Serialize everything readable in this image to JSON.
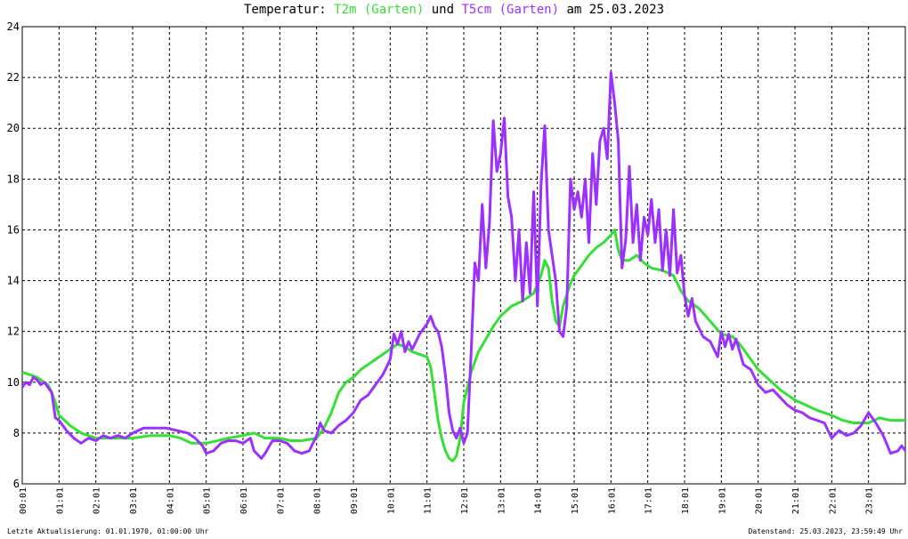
{
  "title": {
    "prefix": "Temperatur: ",
    "series1": "T2m (Garten)",
    "middle": " und ",
    "series2": "T5cm (Garten)",
    "suffix": " am 25.03.2023"
  },
  "footer": {
    "left": "Letzte Aktualisierung: 01.01.1970, 01:00:00 Uhr",
    "right": "Datenstand: 25.03.2023, 23:59:49 Uhr"
  },
  "chart_data": {
    "type": "line",
    "title": "Temperatur: T2m (Garten) und T5cm (Garten) am 25.03.2023",
    "xlabel": "",
    "ylabel": "",
    "xlim": [
      0,
      24
    ],
    "ylim": [
      6,
      24
    ],
    "grid": true,
    "y_ticks": [
      "6",
      "8",
      "10",
      "12",
      "14",
      "16",
      "18",
      "20",
      "22",
      "24"
    ],
    "x_ticks": [
      "00:01",
      "01:01",
      "02:01",
      "03:01",
      "04:01",
      "05:01",
      "06:01",
      "07:01",
      "08:01",
      "09:01",
      "10:01",
      "11:01",
      "12:01",
      "13:01",
      "14:01",
      "15:01",
      "16:01",
      "17:01",
      "18:01",
      "19:01",
      "20:01",
      "21:01",
      "22:01",
      "23:01"
    ],
    "series": [
      {
        "name": "T2m (Garten)",
        "color": "#33e033",
        "points": [
          [
            0,
            10.4
          ],
          [
            0.4,
            10.2
          ],
          [
            0.7,
            9.9
          ],
          [
            0.8,
            9.6
          ],
          [
            0.9,
            9.2
          ],
          [
            1,
            8.7
          ],
          [
            1.3,
            8.3
          ],
          [
            1.6,
            8.0
          ],
          [
            2,
            7.8
          ],
          [
            2.5,
            7.8
          ],
          [
            3,
            7.8
          ],
          [
            3.5,
            7.9
          ],
          [
            4,
            7.9
          ],
          [
            4.3,
            7.8
          ],
          [
            4.6,
            7.6
          ],
          [
            5,
            7.6
          ],
          [
            5.3,
            7.7
          ],
          [
            5.6,
            7.8
          ],
          [
            6,
            7.9
          ],
          [
            6.3,
            8.0
          ],
          [
            6.6,
            7.8
          ],
          [
            7,
            7.8
          ],
          [
            7.3,
            7.7
          ],
          [
            7.6,
            7.7
          ],
          [
            8,
            7.8
          ],
          [
            8.2,
            8.2
          ],
          [
            8.4,
            8.8
          ],
          [
            8.6,
            9.6
          ],
          [
            8.8,
            10.0
          ],
          [
            9,
            10.2
          ],
          [
            9.2,
            10.5
          ],
          [
            9.4,
            10.7
          ],
          [
            9.6,
            10.9
          ],
          [
            9.8,
            11.1
          ],
          [
            10,
            11.3
          ],
          [
            10.2,
            11.5
          ],
          [
            10.4,
            11.4
          ],
          [
            10.6,
            11.2
          ],
          [
            10.8,
            11.1
          ],
          [
            11,
            11.0
          ],
          [
            11.1,
            10.6
          ],
          [
            11.2,
            9.6
          ],
          [
            11.3,
            8.5
          ],
          [
            11.4,
            7.8
          ],
          [
            11.5,
            7.3
          ],
          [
            11.6,
            7.0
          ],
          [
            11.7,
            6.9
          ],
          [
            11.8,
            7.1
          ],
          [
            11.9,
            7.8
          ],
          [
            12,
            9.2
          ],
          [
            12.2,
            10.4
          ],
          [
            12.4,
            11.2
          ],
          [
            12.6,
            11.7
          ],
          [
            12.8,
            12.2
          ],
          [
            13,
            12.6
          ],
          [
            13.3,
            13.0
          ],
          [
            13.6,
            13.2
          ],
          [
            13.9,
            13.5
          ],
          [
            14.1,
            14.2
          ],
          [
            14.2,
            14.8
          ],
          [
            14.3,
            14.5
          ],
          [
            14.4,
            13.2
          ],
          [
            14.5,
            12.4
          ],
          [
            14.6,
            12.2
          ],
          [
            14.7,
            13.0
          ],
          [
            14.9,
            13.9
          ],
          [
            15,
            14.2
          ],
          [
            15.2,
            14.6
          ],
          [
            15.4,
            15.0
          ],
          [
            15.6,
            15.3
          ],
          [
            15.8,
            15.5
          ],
          [
            16,
            15.8
          ],
          [
            16.1,
            16.0
          ],
          [
            16.2,
            15.2
          ],
          [
            16.3,
            14.8
          ],
          [
            16.5,
            14.8
          ],
          [
            16.7,
            15.0
          ],
          [
            16.9,
            14.7
          ],
          [
            17.1,
            14.5
          ],
          [
            17.4,
            14.4
          ],
          [
            17.7,
            14.2
          ],
          [
            17.9,
            13.6
          ],
          [
            18.1,
            13.2
          ],
          [
            18.4,
            12.9
          ],
          [
            18.7,
            12.4
          ],
          [
            19,
            11.9
          ],
          [
            19.3,
            11.8
          ],
          [
            19.5,
            11.5
          ],
          [
            19.7,
            11.1
          ],
          [
            20,
            10.5
          ],
          [
            20.3,
            10.1
          ],
          [
            20.6,
            9.7
          ],
          [
            21,
            9.3
          ],
          [
            21.3,
            9.1
          ],
          [
            21.6,
            8.9
          ],
          [
            22,
            8.7
          ],
          [
            22.3,
            8.5
          ],
          [
            22.6,
            8.4
          ],
          [
            23,
            8.4
          ],
          [
            23.3,
            8.6
          ],
          [
            23.6,
            8.5
          ],
          [
            24,
            8.5
          ]
        ]
      },
      {
        "name": "T5cm (Garten)",
        "color": "#9b30ff",
        "points": [
          [
            0,
            9.8
          ],
          [
            0.1,
            10.0
          ],
          [
            0.2,
            9.9
          ],
          [
            0.3,
            10.2
          ],
          [
            0.4,
            10.1
          ],
          [
            0.5,
            9.9
          ],
          [
            0.6,
            10.0
          ],
          [
            0.7,
            9.8
          ],
          [
            0.8,
            9.6
          ],
          [
            0.9,
            8.6
          ],
          [
            1,
            8.5
          ],
          [
            1.2,
            8.1
          ],
          [
            1.4,
            7.8
          ],
          [
            1.6,
            7.6
          ],
          [
            1.8,
            7.8
          ],
          [
            2,
            7.7
          ],
          [
            2.2,
            7.9
          ],
          [
            2.4,
            7.8
          ],
          [
            2.6,
            7.9
          ],
          [
            2.8,
            7.8
          ],
          [
            3,
            8.0
          ],
          [
            3.3,
            8.2
          ],
          [
            3.6,
            8.2
          ],
          [
            3.9,
            8.2
          ],
          [
            4.2,
            8.1
          ],
          [
            4.5,
            8.0
          ],
          [
            4.7,
            7.8
          ],
          [
            4.9,
            7.5
          ],
          [
            5,
            7.2
          ],
          [
            5.2,
            7.3
          ],
          [
            5.4,
            7.6
          ],
          [
            5.6,
            7.7
          ],
          [
            5.8,
            7.7
          ],
          [
            6,
            7.6
          ],
          [
            6.2,
            7.8
          ],
          [
            6.3,
            7.3
          ],
          [
            6.5,
            7.0
          ],
          [
            6.6,
            7.2
          ],
          [
            6.8,
            7.7
          ],
          [
            7,
            7.7
          ],
          [
            7.2,
            7.6
          ],
          [
            7.4,
            7.3
          ],
          [
            7.6,
            7.2
          ],
          [
            7.8,
            7.3
          ],
          [
            8,
            7.9
          ],
          [
            8.1,
            8.4
          ],
          [
            8.2,
            8.1
          ],
          [
            8.4,
            8.0
          ],
          [
            8.6,
            8.3
          ],
          [
            8.8,
            8.5
          ],
          [
            9,
            8.8
          ],
          [
            9.2,
            9.3
          ],
          [
            9.4,
            9.5
          ],
          [
            9.6,
            9.9
          ],
          [
            9.8,
            10.3
          ],
          [
            10,
            10.9
          ],
          [
            10.1,
            11.9
          ],
          [
            10.2,
            11.5
          ],
          [
            10.3,
            12.0
          ],
          [
            10.4,
            11.2
          ],
          [
            10.5,
            11.6
          ],
          [
            10.6,
            11.3
          ],
          [
            10.8,
            11.9
          ],
          [
            11,
            12.3
          ],
          [
            11.1,
            12.6
          ],
          [
            11.2,
            12.2
          ],
          [
            11.3,
            12.0
          ],
          [
            11.4,
            11.4
          ],
          [
            11.5,
            10.3
          ],
          [
            11.6,
            8.8
          ],
          [
            11.7,
            8.1
          ],
          [
            11.8,
            7.8
          ],
          [
            11.9,
            8.2
          ],
          [
            12,
            7.6
          ],
          [
            12.1,
            8.0
          ],
          [
            12.2,
            11.2
          ],
          [
            12.3,
            14.7
          ],
          [
            12.4,
            14.0
          ],
          [
            12.5,
            17.0
          ],
          [
            12.6,
            14.5
          ],
          [
            12.7,
            16.3
          ],
          [
            12.8,
            20.3
          ],
          [
            12.9,
            18.3
          ],
          [
            13,
            19.0
          ],
          [
            13.1,
            20.4
          ],
          [
            13.2,
            17.3
          ],
          [
            13.3,
            16.5
          ],
          [
            13.4,
            14.0
          ],
          [
            13.5,
            16.0
          ],
          [
            13.6,
            13.2
          ],
          [
            13.7,
            15.5
          ],
          [
            13.8,
            13.5
          ],
          [
            13.9,
            17.5
          ],
          [
            14,
            13.0
          ],
          [
            14.1,
            17.8
          ],
          [
            14.2,
            20.1
          ],
          [
            14.3,
            16.0
          ],
          [
            14.4,
            15.0
          ],
          [
            14.5,
            14.0
          ],
          [
            14.6,
            12.0
          ],
          [
            14.7,
            11.8
          ],
          [
            14.8,
            13.0
          ],
          [
            14.9,
            18.0
          ],
          [
            15,
            16.8
          ],
          [
            15.1,
            17.5
          ],
          [
            15.2,
            16.5
          ],
          [
            15.3,
            18.0
          ],
          [
            15.4,
            15.5
          ],
          [
            15.5,
            19.0
          ],
          [
            15.6,
            17.0
          ],
          [
            15.7,
            19.5
          ],
          [
            15.8,
            20.0
          ],
          [
            15.9,
            18.8
          ],
          [
            16,
            22.2
          ],
          [
            16.1,
            21.0
          ],
          [
            16.2,
            19.5
          ],
          [
            16.3,
            14.5
          ],
          [
            16.4,
            15.6
          ],
          [
            16.5,
            18.5
          ],
          [
            16.6,
            15.5
          ],
          [
            16.7,
            17.0
          ],
          [
            16.8,
            14.8
          ],
          [
            16.9,
            16.5
          ],
          [
            17,
            15.8
          ],
          [
            17.1,
            17.2
          ],
          [
            17.2,
            15.5
          ],
          [
            17.3,
            16.8
          ],
          [
            17.4,
            14.4
          ],
          [
            17.5,
            16.0
          ],
          [
            17.6,
            14.2
          ],
          [
            17.7,
            16.8
          ],
          [
            17.8,
            14.3
          ],
          [
            17.9,
            15.0
          ],
          [
            18,
            13.4
          ],
          [
            18.1,
            12.6
          ],
          [
            18.2,
            13.3
          ],
          [
            18.3,
            12.4
          ],
          [
            18.5,
            11.8
          ],
          [
            18.7,
            11.6
          ],
          [
            18.9,
            11.0
          ],
          [
            19,
            12.0
          ],
          [
            19.1,
            11.4
          ],
          [
            19.2,
            11.9
          ],
          [
            19.3,
            11.3
          ],
          [
            19.4,
            11.7
          ],
          [
            19.6,
            10.7
          ],
          [
            19.8,
            10.5
          ],
          [
            20,
            9.9
          ],
          [
            20.2,
            9.6
          ],
          [
            20.4,
            9.7
          ],
          [
            20.6,
            9.4
          ],
          [
            20.8,
            9.1
          ],
          [
            21,
            8.9
          ],
          [
            21.2,
            8.8
          ],
          [
            21.4,
            8.6
          ],
          [
            21.6,
            8.5
          ],
          [
            21.8,
            8.4
          ],
          [
            22,
            7.8
          ],
          [
            22.2,
            8.1
          ],
          [
            22.4,
            7.9
          ],
          [
            22.6,
            8.0
          ],
          [
            22.8,
            8.3
          ],
          [
            23,
            8.8
          ],
          [
            23.2,
            8.4
          ],
          [
            23.4,
            7.9
          ],
          [
            23.6,
            7.2
          ],
          [
            23.8,
            7.3
          ],
          [
            23.9,
            7.5
          ],
          [
            24,
            7.3
          ]
        ]
      }
    ]
  }
}
